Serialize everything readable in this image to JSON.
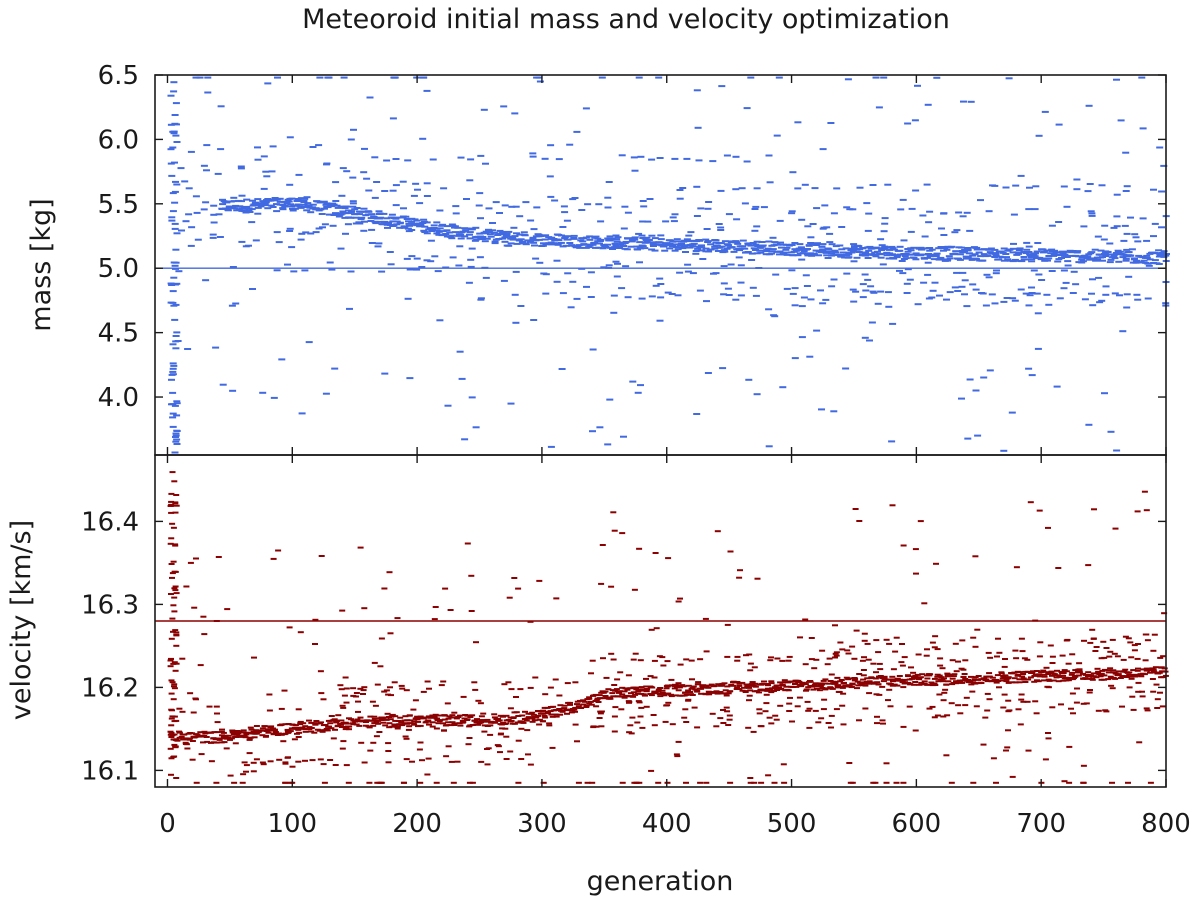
{
  "chart_data": {
    "type": "scatter",
    "title": "Meteoroid initial mass and velocity optimization",
    "xlabel": "generation",
    "xlim": [
      -10,
      800
    ],
    "xticks": [
      "0",
      "100",
      "200",
      "300",
      "400",
      "500",
      "600",
      "700",
      "800"
    ],
    "xtick_values": [
      0,
      100,
      200,
      300,
      400,
      500,
      600,
      700,
      800
    ],
    "panels": [
      {
        "id": "mass",
        "ylabel": "mass [kg]",
        "ylim": [
          3.55,
          6.5
        ],
        "yticks": [
          "4.0",
          "4.5",
          "5.0",
          "5.5",
          "6.0",
          "6.5"
        ],
        "ytick_values": [
          4.0,
          4.5,
          5.0,
          5.5,
          6.0,
          6.5
        ],
        "color": "#4169e1",
        "reference_value": 5.0,
        "trend": [
          {
            "generation": 40,
            "value": 5.48
          },
          {
            "generation": 100,
            "value": 5.5
          },
          {
            "generation": 150,
            "value": 5.42
          },
          {
            "generation": 200,
            "value": 5.33
          },
          {
            "generation": 250,
            "value": 5.25
          },
          {
            "generation": 300,
            "value": 5.22
          },
          {
            "generation": 350,
            "value": 5.2
          },
          {
            "generation": 400,
            "value": 5.18
          },
          {
            "generation": 450,
            "value": 5.17
          },
          {
            "generation": 500,
            "value": 5.15
          },
          {
            "generation": 550,
            "value": 5.13
          },
          {
            "generation": 600,
            "value": 5.12
          },
          {
            "generation": 650,
            "value": 5.11
          },
          {
            "generation": 700,
            "value": 5.1
          },
          {
            "generation": 750,
            "value": 5.09
          },
          {
            "generation": 800,
            "value": 5.08
          }
        ],
        "bands": [
          {
            "start": 0,
            "end": 120,
            "value": 5.93
          },
          {
            "start": 50,
            "end": 250,
            "value": 5.0
          },
          {
            "start": 190,
            "end": 800,
            "value": 4.78
          },
          {
            "start": 400,
            "end": 800,
            "value": 5.62
          },
          {
            "start": 500,
            "end": 800,
            "value": 4.72
          },
          {
            "start": 130,
            "end": 500,
            "value": 5.85
          }
        ],
        "scatter_min": 3.55,
        "scatter_max": 6.48
      },
      {
        "id": "velocity",
        "ylabel": "velocity [km/s]",
        "ylim": [
          16.08,
          16.48
        ],
        "yticks": [
          "16.1",
          "16.2",
          "16.3",
          "16.4"
        ],
        "ytick_values": [
          16.1,
          16.2,
          16.3,
          16.4
        ],
        "color": "#8b0000",
        "reference_value": 16.28,
        "trend": [
          {
            "generation": 0,
            "value": 16.14
          },
          {
            "generation": 40,
            "value": 16.14
          },
          {
            "generation": 100,
            "value": 16.152
          },
          {
            "generation": 150,
            "value": 16.158
          },
          {
            "generation": 200,
            "value": 16.16
          },
          {
            "generation": 250,
            "value": 16.16
          },
          {
            "generation": 290,
            "value": 16.165
          },
          {
            "generation": 330,
            "value": 16.18
          },
          {
            "generation": 350,
            "value": 16.192
          },
          {
            "generation": 400,
            "value": 16.196
          },
          {
            "generation": 450,
            "value": 16.2
          },
          {
            "generation": 500,
            "value": 16.202
          },
          {
            "generation": 550,
            "value": 16.206
          },
          {
            "generation": 600,
            "value": 16.209
          },
          {
            "generation": 650,
            "value": 16.211
          },
          {
            "generation": 700,
            "value": 16.214
          },
          {
            "generation": 750,
            "value": 16.216
          },
          {
            "generation": 800,
            "value": 16.218
          }
        ],
        "bands": [
          {
            "start": 50,
            "end": 300,
            "value": 16.11
          },
          {
            "start": 130,
            "end": 320,
            "value": 16.2
          },
          {
            "start": 330,
            "end": 800,
            "value": 16.235
          },
          {
            "start": 400,
            "end": 800,
            "value": 16.175
          },
          {
            "start": 500,
            "end": 800,
            "value": 16.258
          },
          {
            "start": 300,
            "end": 600,
            "value": 16.155
          }
        ],
        "scatter_min": 16.085,
        "scatter_max": 16.475
      }
    ]
  }
}
